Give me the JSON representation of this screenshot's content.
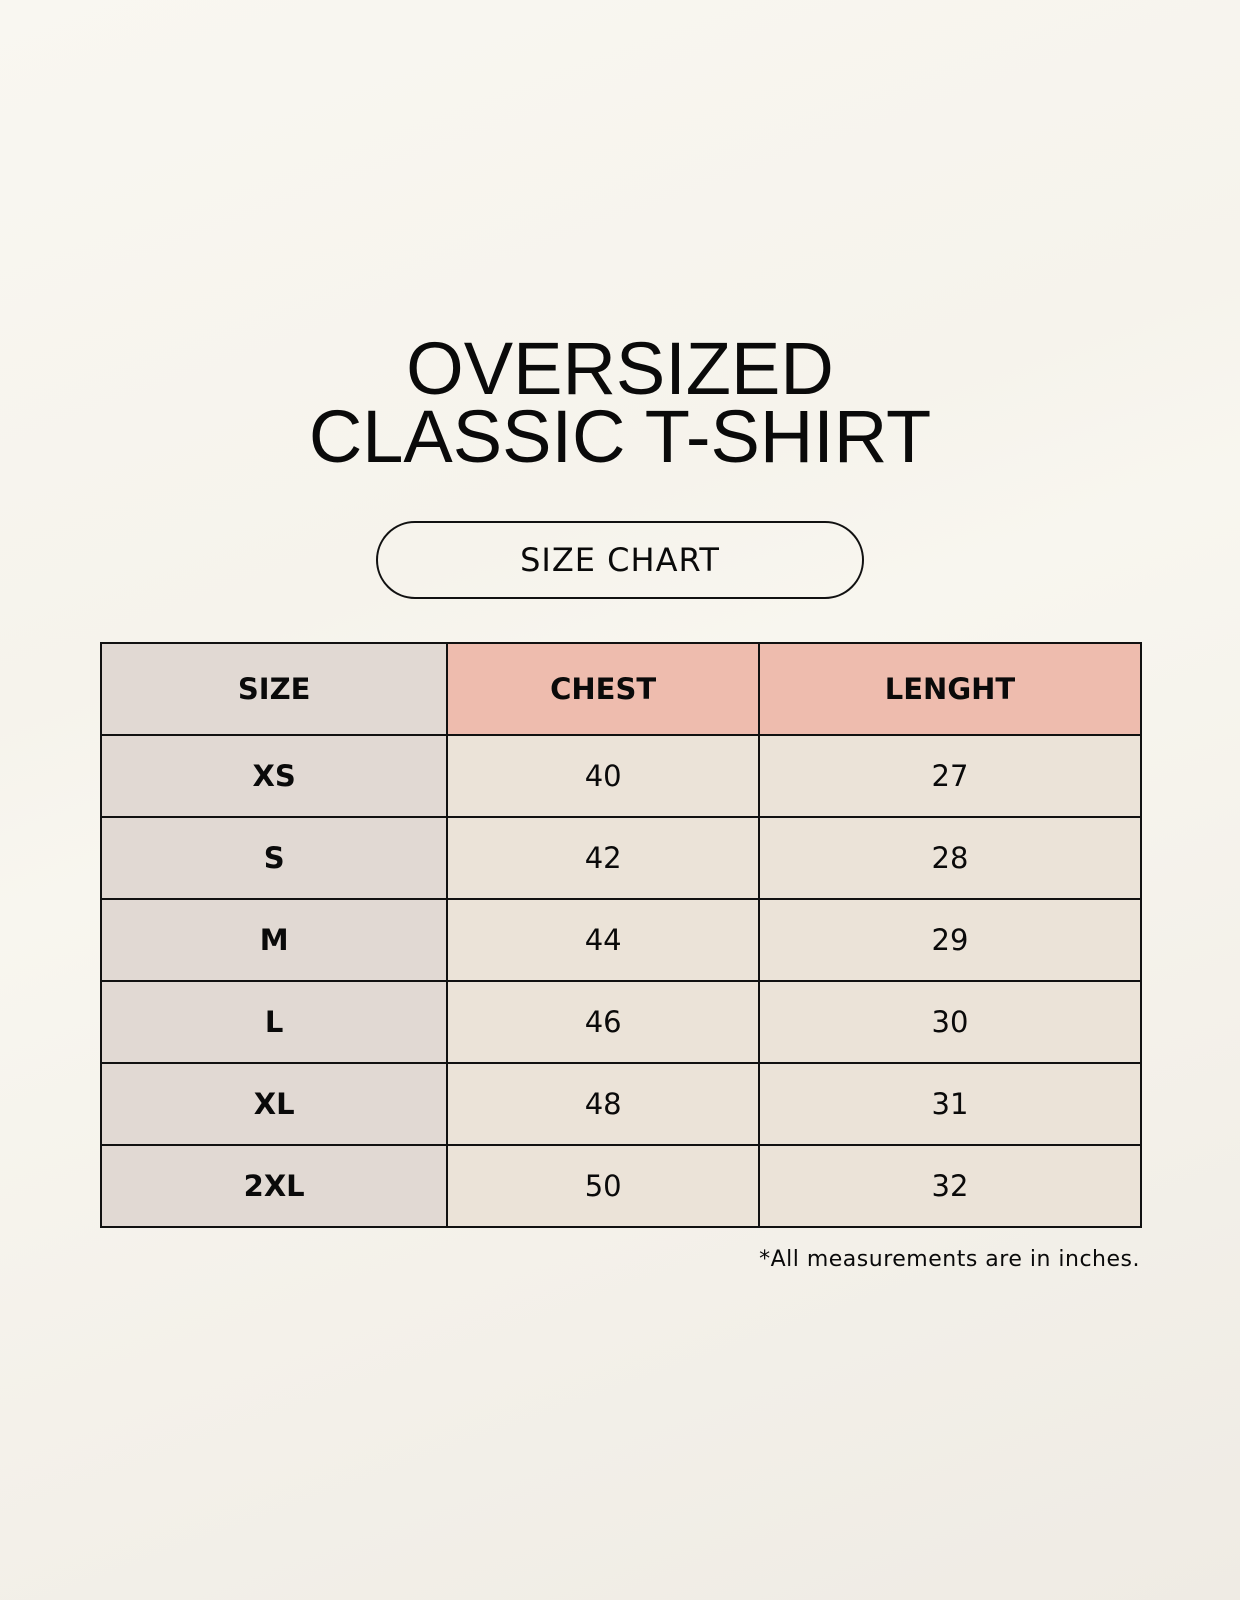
{
  "title": {
    "line1": "OVERSIZED",
    "line2": "CLASSIC T-SHIRT"
  },
  "badge": "SIZE CHART",
  "table": {
    "headers": [
      "SIZE",
      "CHEST",
      "LENGHT"
    ],
    "rows": [
      [
        "XS",
        "40",
        "27"
      ],
      [
        "S",
        "42",
        "28"
      ],
      [
        "M",
        "44",
        "29"
      ],
      [
        "L",
        "46",
        "30"
      ],
      [
        "XL",
        "48",
        "31"
      ],
      [
        "2XL",
        "50",
        "32"
      ]
    ]
  },
  "footnote": "*All measurements are in inches.",
  "colors": {
    "size_column": "#e1d9d3",
    "header_accent": "#eebcae",
    "cell": "#ebe3d8"
  }
}
